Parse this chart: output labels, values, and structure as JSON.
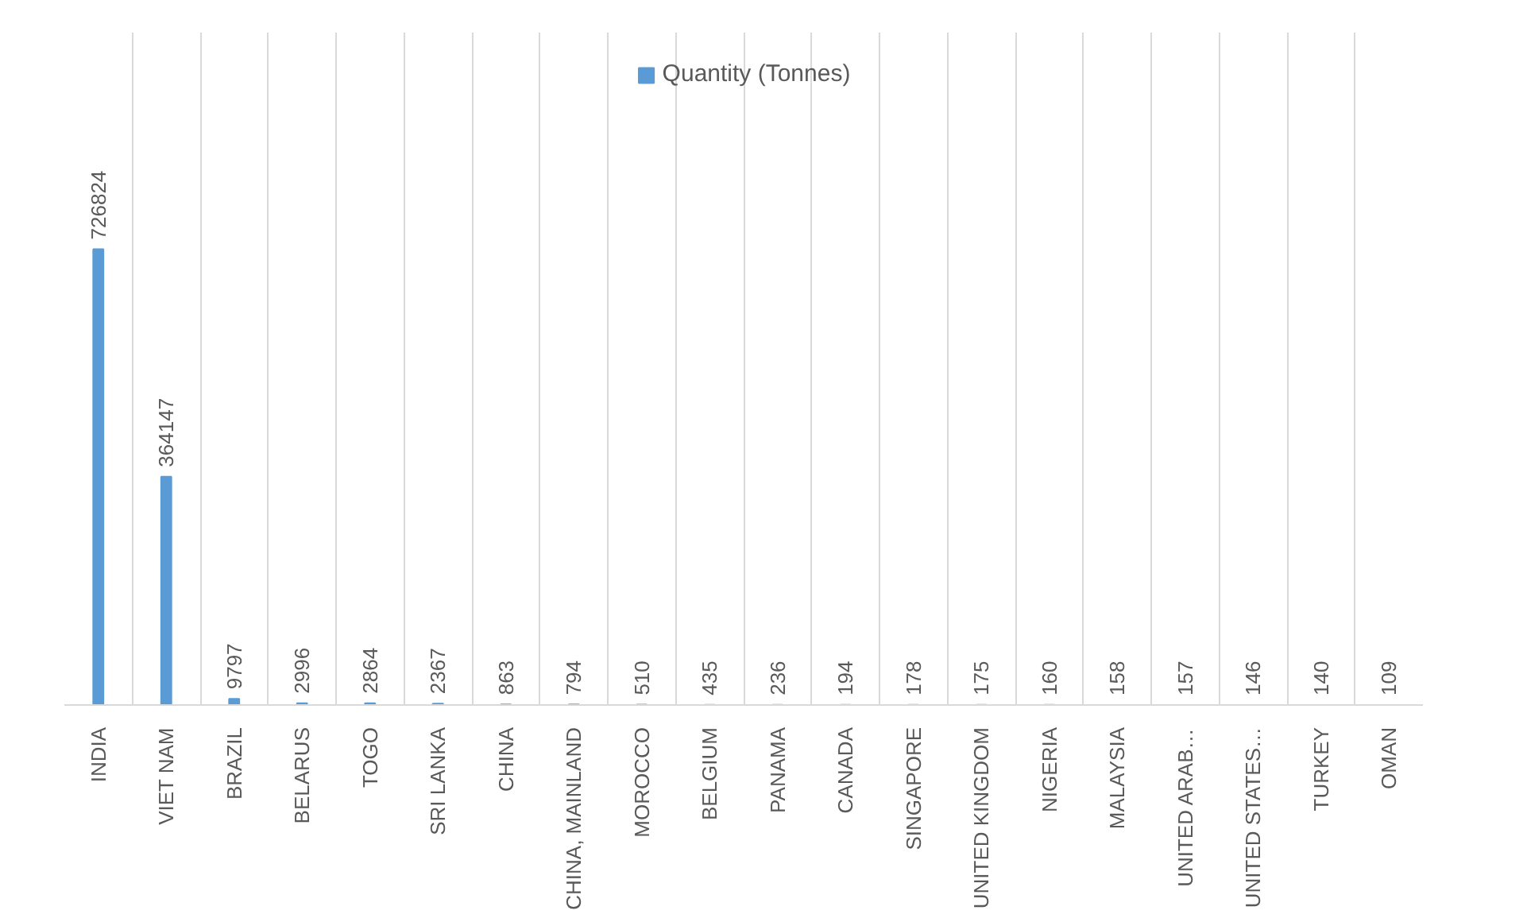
{
  "chart_data": {
    "type": "bar",
    "categories": [
      "INDIA",
      "VIET NAM",
      "BRAZIL",
      "BELARUS",
      "TOGO",
      "SRI LANKA",
      "CHINA",
      "CHINA, MAINLAND",
      "MOROCCO",
      "BELGIUM",
      "PANAMA",
      "CANADA",
      "SINGAPORE",
      "UNITED KINGDOM",
      "NIGERIA",
      "MALAYSIA",
      "UNITED ARAB…",
      "UNITED STATES…",
      "TURKEY",
      "OMAN"
    ],
    "series": [
      {
        "name": "Quantity (Tonnes)",
        "color": "#5b9bd5",
        "values": [
          726824,
          364147,
          9797,
          2996,
          2864,
          2367,
          863,
          794,
          510,
          435,
          236,
          194,
          178,
          175,
          160,
          158,
          157,
          146,
          140,
          109
        ]
      }
    ],
    "data_labels": true,
    "grid": "x",
    "legend": "top",
    "tick_labels": "x"
  }
}
